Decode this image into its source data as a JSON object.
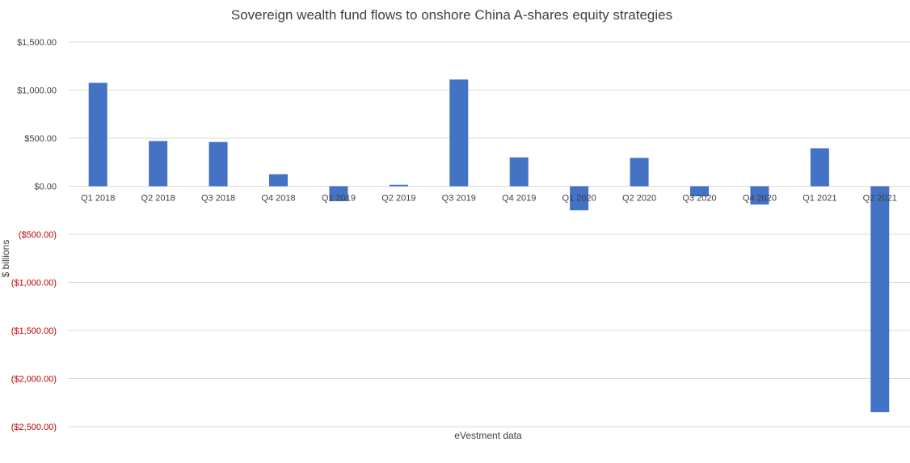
{
  "chart_data": {
    "type": "bar",
    "title": "Sovereign wealth fund flows to onshore China A-shares equity strategies",
    "xlabel": "eVestment data",
    "ylabel": "$ billions",
    "categories": [
      "Q1 2018",
      "Q2 2018",
      "Q3 2018",
      "Q4 2018",
      "Q1 2019",
      "Q2 2019",
      "Q3 2019",
      "Q4 2019",
      "Q1 2020",
      "Q2 2020",
      "Q3 2020",
      "Q4 2020",
      "Q1 2021",
      "Q2 2021"
    ],
    "values": [
      1075,
      470,
      460,
      125,
      -155,
      15,
      1110,
      300,
      -250,
      295,
      -105,
      -190,
      395,
      -2350
    ],
    "ylim": [
      -2500,
      1500
    ],
    "yticks": [
      1500,
      1000,
      500,
      0,
      -500,
      -1000,
      -1500,
      -2000,
      -2500
    ],
    "ytick_labels": [
      "$1,500.00",
      "$1,000.00",
      "$500.00",
      "$0.00",
      "($500.00)",
      "($1,000.00)",
      "($1,500.00)",
      "($2,000.00)",
      "($2,500.00)"
    ],
    "grid": true,
    "legend": "none",
    "colors": {
      "bar": "#4472C4",
      "negative_tick": "#C00000",
      "positive_tick": "#404040",
      "grid": "#D9D9D9",
      "text": "#404040"
    }
  }
}
